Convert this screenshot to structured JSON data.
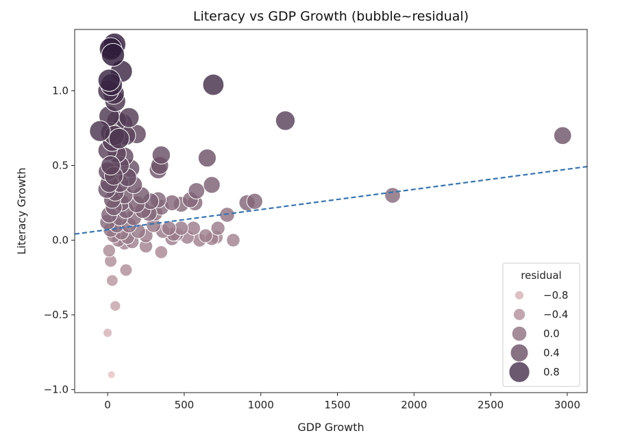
{
  "chart_data": {
    "type": "scatter",
    "title": "Literacy vs GDP Growth (bubble~residual)",
    "xlabel": "GDP Growth",
    "ylabel": "Literacy Growth",
    "xlim": [
      -215,
      3130
    ],
    "ylim": [
      -1.02,
      1.41
    ],
    "x_ticks": [
      "0",
      "500",
      "1000",
      "1500",
      "2000",
      "2500",
      "3000"
    ],
    "x_tick_values": [
      0,
      500,
      1000,
      1500,
      2000,
      2500,
      3000
    ],
    "y_ticks": [
      "−1.0",
      "−0.5",
      "0.0",
      "0.5",
      "1.0"
    ],
    "y_tick_values": [
      -1.0,
      -0.5,
      0.0,
      0.5,
      1.0
    ],
    "grid": false,
    "regression_line": {
      "slope": 0.000135,
      "intercept": 0.07,
      "style": "dashed",
      "color": "#3274b5"
    },
    "color_low": "#e9c2c4",
    "color_high": "#2b1838",
    "residual_range": [
      -1.0,
      1.15
    ],
    "legend": {
      "title": "residual",
      "position": "lower-right",
      "labels": [
        "−0.8",
        "−0.4",
        "0.0",
        "0.4",
        "0.8"
      ],
      "values": [
        -0.8,
        -0.4,
        0.0,
        0.4,
        0.8
      ]
    },
    "points": [
      {
        "x": 30,
        "y": 1.29,
        "r": 1.0
      },
      {
        "x": 45,
        "y": 1.31,
        "r": 1.05
      },
      {
        "x": 20,
        "y": 1.28,
        "r": 1.05
      },
      {
        "x": 35,
        "y": 1.24,
        "r": 1.1
      },
      {
        "x": 90,
        "y": 1.13,
        "r": 0.95
      },
      {
        "x": 10,
        "y": 1.07,
        "r": 1.0
      },
      {
        "x": 25,
        "y": 1.04,
        "r": 0.95
      },
      {
        "x": 40,
        "y": 0.98,
        "r": 0.85
      },
      {
        "x": 5,
        "y": 1.0,
        "r": 0.85
      },
      {
        "x": 50,
        "y": 0.93,
        "r": 0.8
      },
      {
        "x": 10,
        "y": 0.83,
        "r": 0.75
      },
      {
        "x": 60,
        "y": 0.8,
        "r": 0.7
      },
      {
        "x": 140,
        "y": 0.82,
        "r": 0.7
      },
      {
        "x": 100,
        "y": 0.78,
        "r": 0.6
      },
      {
        "x": -50,
        "y": 0.73,
        "r": 0.8
      },
      {
        "x": 20,
        "y": 0.72,
        "r": 0.7
      },
      {
        "x": 45,
        "y": 0.7,
        "r": 0.7
      },
      {
        "x": 75,
        "y": 0.68,
        "r": 0.75
      },
      {
        "x": 120,
        "y": 0.7,
        "r": 0.6
      },
      {
        "x": 190,
        "y": 0.71,
        "r": 0.55
      },
      {
        "x": 30,
        "y": 0.66,
        "r": 0.65
      },
      {
        "x": 0,
        "y": 0.6,
        "r": 0.6
      },
      {
        "x": 60,
        "y": 0.58,
        "r": 0.55
      },
      {
        "x": 110,
        "y": 0.56,
        "r": 0.5
      },
      {
        "x": 20,
        "y": 0.5,
        "r": 0.6
      },
      {
        "x": 80,
        "y": 0.5,
        "r": 0.5
      },
      {
        "x": 150,
        "y": 0.48,
        "r": 0.45
      },
      {
        "x": 0,
        "y": 0.46,
        "r": 0.5
      },
      {
        "x": 40,
        "y": 0.43,
        "r": 0.5
      },
      {
        "x": 130,
        "y": 0.42,
        "r": 0.45
      },
      {
        "x": 10,
        "y": 0.38,
        "r": 0.45
      },
      {
        "x": 80,
        "y": 0.38,
        "r": 0.4
      },
      {
        "x": 170,
        "y": 0.37,
        "r": 0.35
      },
      {
        "x": -5,
        "y": 0.34,
        "r": 0.4
      },
      {
        "x": 50,
        "y": 0.32,
        "r": 0.35
      },
      {
        "x": 110,
        "y": 0.3,
        "r": 0.3
      },
      {
        "x": 220,
        "y": 0.3,
        "r": 0.3
      },
      {
        "x": 30,
        "y": 0.27,
        "r": 0.3
      },
      {
        "x": 90,
        "y": 0.25,
        "r": 0.25
      },
      {
        "x": 190,
        "y": 0.24,
        "r": 0.25
      },
      {
        "x": 280,
        "y": 0.26,
        "r": 0.22
      },
      {
        "x": 40,
        "y": 0.22,
        "r": 0.25
      },
      {
        "x": 120,
        "y": 0.2,
        "r": 0.2
      },
      {
        "x": 230,
        "y": 0.2,
        "r": 0.18
      },
      {
        "x": 10,
        "y": 0.17,
        "r": 0.2
      },
      {
        "x": 80,
        "y": 0.15,
        "r": 0.15
      },
      {
        "x": 170,
        "y": 0.15,
        "r": 0.12
      },
      {
        "x": 270,
        "y": 0.18,
        "r": 0.15
      },
      {
        "x": 0,
        "y": 0.12,
        "r": 0.1
      },
      {
        "x": 60,
        "y": 0.1,
        "r": 0.05
      },
      {
        "x": 140,
        "y": 0.1,
        "r": 0.05
      },
      {
        "x": 20,
        "y": 0.07,
        "r": 0.0
      },
      {
        "x": 90,
        "y": 0.05,
        "r": -0.05
      },
      {
        "x": 200,
        "y": 0.06,
        "r": -0.05
      },
      {
        "x": 40,
        "y": 0.03,
        "r": -0.1
      },
      {
        "x": 130,
        "y": 0.02,
        "r": -0.1
      },
      {
        "x": 250,
        "y": 0.03,
        "r": -0.12
      },
      {
        "x": 70,
        "y": 0.0,
        "r": -0.15
      },
      {
        "x": 160,
        "y": -0.01,
        "r": -0.15
      },
      {
        "x": 110,
        "y": -0.02,
        "r": -0.18
      },
      {
        "x": 330,
        "y": 0.47,
        "r": 0.38
      },
      {
        "x": 340,
        "y": 0.5,
        "r": 0.4
      },
      {
        "x": 350,
        "y": 0.57,
        "r": 0.45
      },
      {
        "x": 330,
        "y": 0.27,
        "r": 0.15
      },
      {
        "x": 350,
        "y": 0.22,
        "r": 0.1
      },
      {
        "x": 310,
        "y": 0.18,
        "r": 0.05
      },
      {
        "x": 420,
        "y": 0.25,
        "r": 0.12
      },
      {
        "x": 480,
        "y": 0.24,
        "r": 0.1
      },
      {
        "x": 540,
        "y": 0.27,
        "r": 0.12
      },
      {
        "x": 570,
        "y": 0.25,
        "r": 0.1
      },
      {
        "x": 580,
        "y": 0.33,
        "r": 0.2
      },
      {
        "x": 650,
        "y": 0.55,
        "r": 0.42
      },
      {
        "x": 680,
        "y": 0.37,
        "r": 0.25
      },
      {
        "x": 300,
        "y": 0.1,
        "r": -0.05
      },
      {
        "x": 360,
        "y": 0.06,
        "r": -0.1
      },
      {
        "x": 400,
        "y": 0.08,
        "r": -0.08
      },
      {
        "x": 450,
        "y": 0.04,
        "r": -0.12
      },
      {
        "x": 480,
        "y": 0.08,
        "r": -0.1
      },
      {
        "x": 520,
        "y": 0.02,
        "r": -0.15
      },
      {
        "x": 560,
        "y": 0.08,
        "r": -0.12
      },
      {
        "x": 600,
        "y": 0.0,
        "r": -0.18
      },
      {
        "x": 640,
        "y": 0.03,
        "r": -0.16
      },
      {
        "x": 680,
        "y": 0.01,
        "r": -0.18
      },
      {
        "x": 710,
        "y": 0.02,
        "r": -0.2
      },
      {
        "x": 720,
        "y": 0.08,
        "r": -0.12
      },
      {
        "x": 780,
        "y": 0.17,
        "r": 0.0
      },
      {
        "x": 820,
        "y": 0.0,
        "r": -0.2
      },
      {
        "x": 420,
        "y": 0.01,
        "r": -0.15
      },
      {
        "x": 430,
        "y": 0.04,
        "r": -0.12
      },
      {
        "x": 250,
        "y": -0.04,
        "r": -0.2
      },
      {
        "x": 350,
        "y": -0.08,
        "r": -0.28
      },
      {
        "x": 120,
        "y": -0.2,
        "r": -0.35
      },
      {
        "x": 10,
        "y": -0.07,
        "r": -0.3
      },
      {
        "x": 20,
        "y": -0.14,
        "r": -0.35
      },
      {
        "x": 30,
        "y": -0.27,
        "r": -0.45
      },
      {
        "x": 50,
        "y": -0.44,
        "r": -0.6
      },
      {
        "x": 0,
        "y": -0.62,
        "r": -0.8
      },
      {
        "x": 25,
        "y": -0.9,
        "r": -1.0
      },
      {
        "x": 690,
        "y": 1.04,
        "r": 0.85
      },
      {
        "x": 1160,
        "y": 0.8,
        "r": 0.62
      },
      {
        "x": 910,
        "y": 0.25,
        "r": 0.15
      },
      {
        "x": 960,
        "y": 0.26,
        "r": 0.15
      },
      {
        "x": 1860,
        "y": 0.3,
        "r": 0.1
      },
      {
        "x": 2970,
        "y": 0.7,
        "r": 0.38
      }
    ]
  }
}
